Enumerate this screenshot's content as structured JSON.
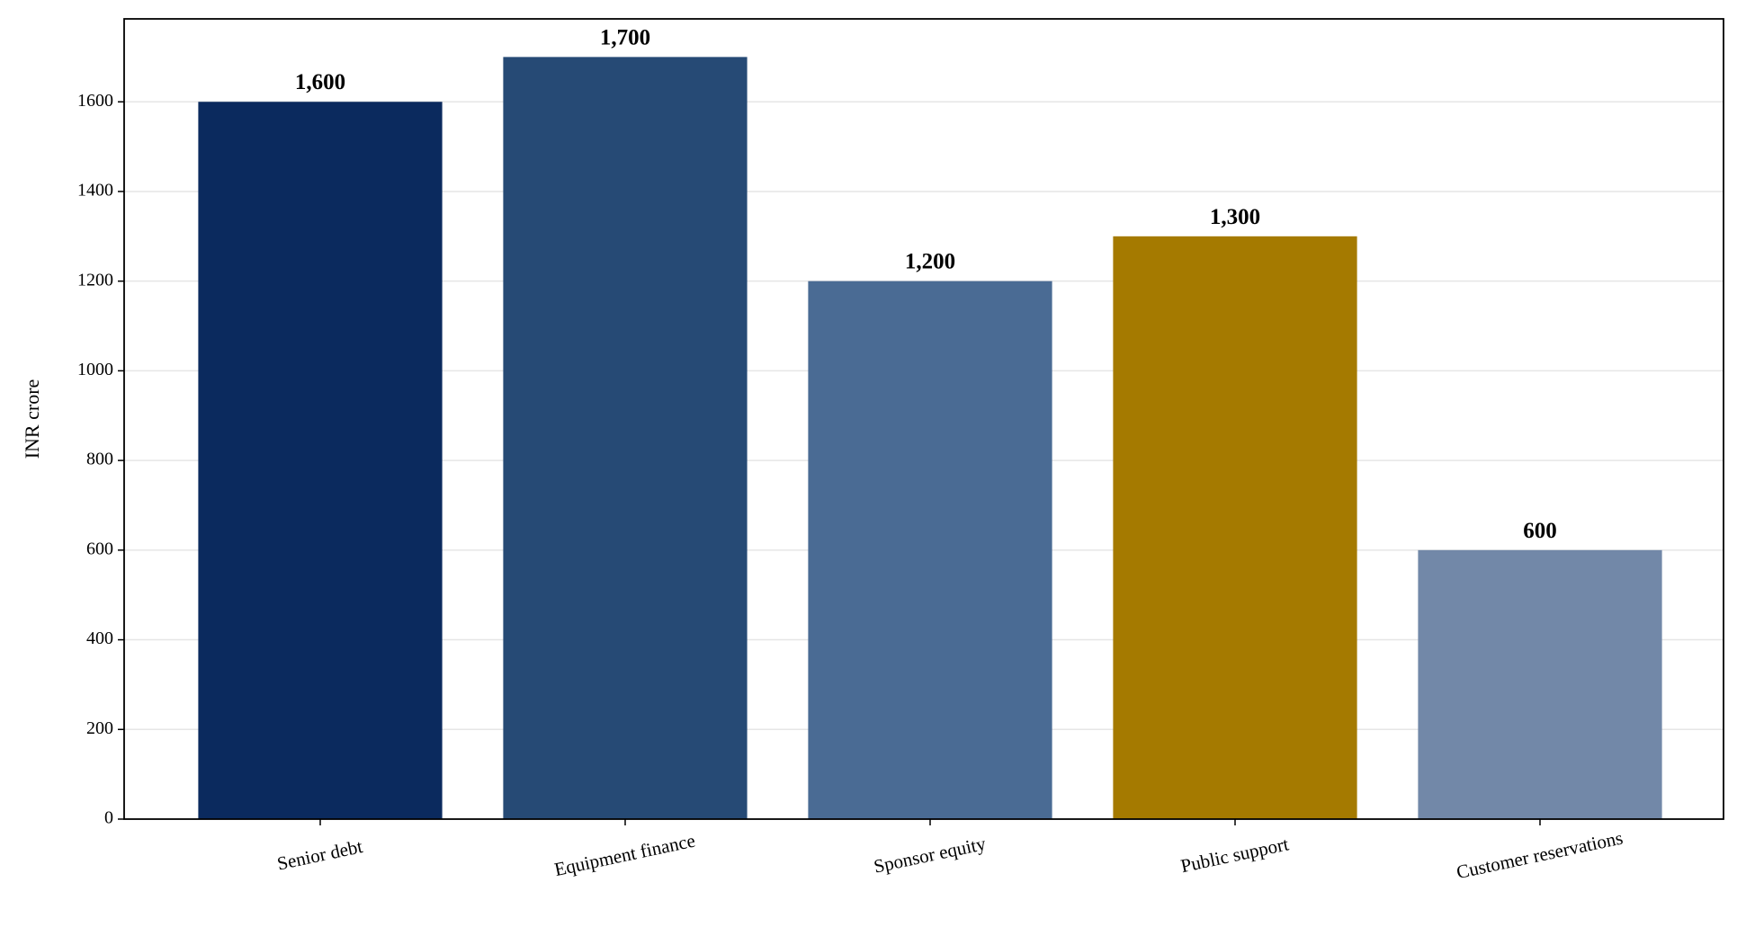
{
  "chart_data": {
    "type": "bar",
    "y_label": "INR crore",
    "categories": [
      "Senior debt",
      "Equipment finance",
      "Sponsor equity",
      "Public support",
      "Customer reservations"
    ],
    "values": [
      1600,
      1700,
      1200,
      1300,
      600
    ],
    "value_labels": [
      "1,600",
      "1,700",
      "1,200",
      "1,300",
      "600"
    ],
    "colors": [
      "#0b2a5e",
      "#264a75",
      "#4a6b94",
      "#a57a00",
      "#7288a8"
    ],
    "ylim": [
      0,
      1785
    ],
    "yticks": [
      0,
      200,
      400,
      600,
      800,
      1000,
      1200,
      1400,
      1600
    ],
    "grid": true
  }
}
